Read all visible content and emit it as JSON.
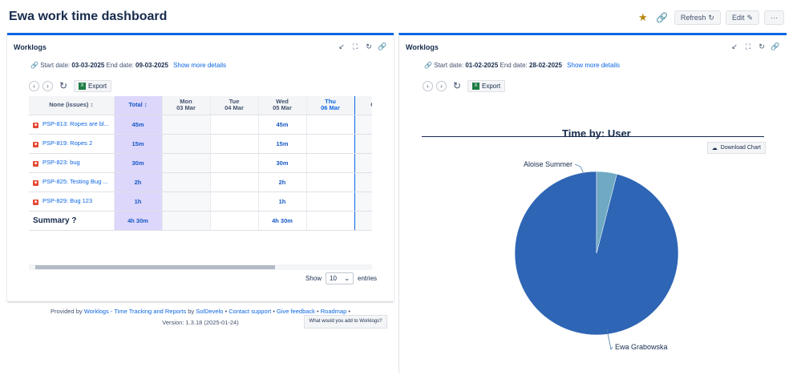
{
  "dashboard": {
    "title": "Ewa work time dashboard",
    "refresh": "Refresh",
    "edit": "Edit",
    "more": "···"
  },
  "left": {
    "title": "Worklogs",
    "start_label": "Start date:",
    "start": "03-03-2025",
    "end_label": "End date:",
    "end": "09-03-2025",
    "details": "Show more details",
    "export": "Export",
    "columns": [
      {
        "top": "None (issues)",
        "bottom": ""
      },
      {
        "top": "Total",
        "bottom": ""
      },
      {
        "top": "Mon",
        "bottom": "03 Mar"
      },
      {
        "top": "Tue",
        "bottom": "04 Mar"
      },
      {
        "top": "Wed",
        "bottom": "05 Mar"
      },
      {
        "top": "Thu",
        "bottom": "06 Mar"
      },
      {
        "top": "",
        "bottom": "C"
      }
    ],
    "rows": [
      {
        "issue": "PSP-813: Ropes are bl...",
        "total": "45m",
        "wed": "45m"
      },
      {
        "issue": "PSP-819: Ropes 2",
        "total": "15m",
        "wed": "15m"
      },
      {
        "issue": "PSP-823: bug",
        "total": "30m",
        "wed": "30m"
      },
      {
        "issue": "PSP-825: Testing Bug ...",
        "total": "2h",
        "wed": "2h"
      },
      {
        "issue": "PSP-829: Bug 123",
        "total": "1h",
        "wed": "1h"
      }
    ],
    "summary_label": "Summary",
    "summary_total": "4h 30m",
    "summary_wed": "4h 30m",
    "show": "Show",
    "entries_value": "10",
    "entries": "entries",
    "footer_provided": "Provided by",
    "footer_app": "Worklogs - Time Tracking and Reports",
    "footer_by": "by",
    "footer_vendor": "SolDevelo",
    "footer_support": "Contact support",
    "footer_feedback": "Give feedback",
    "footer_roadmap": "Roadmap",
    "version": "Version: 1.3.18 (2025-01-24)",
    "feedback_prompt": "What would you add to Worklogs?"
  },
  "right": {
    "title": "Worklogs",
    "start_label": "Start date:",
    "start": "01-02-2025",
    "end_label": "End date:",
    "end": "28-02-2025",
    "details": "Show more details",
    "export": "Export",
    "download": "Download Chart"
  },
  "chart_data": {
    "type": "pie",
    "title": "Time by: User",
    "labels": [
      "Ewa Grabowska",
      "Aloise Summer"
    ],
    "values": [
      96,
      4
    ],
    "colors": [
      "#2e65b5",
      "#6fa9c4"
    ]
  }
}
